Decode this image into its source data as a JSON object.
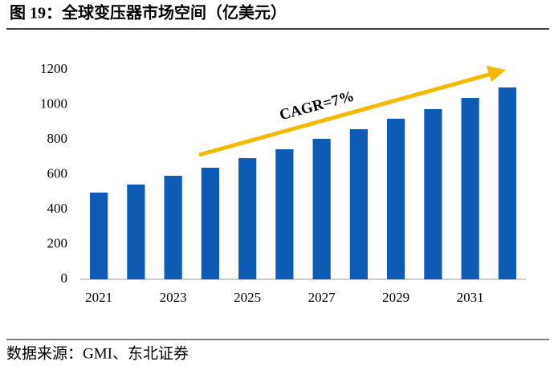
{
  "chart_data": {
    "type": "bar",
    "title": "图 19：全球变压器市场空间（亿美元）",
    "categories": [
      "2021",
      null,
      "2023",
      null,
      "2025",
      null,
      "2027",
      null,
      "2029",
      null,
      "2031",
      null
    ],
    "values": [
      497,
      543,
      593,
      639,
      694,
      745,
      805,
      860,
      920,
      975,
      1039,
      1099
    ],
    "color": "#0d5bb5",
    "ylim": [
      0,
      1200
    ],
    "yticks": [
      0,
      200,
      400,
      600,
      800,
      1000,
      1200
    ],
    "grid": false,
    "annotation": "CAGR=7%",
    "source": "数据来源：GMI、东北证券"
  }
}
